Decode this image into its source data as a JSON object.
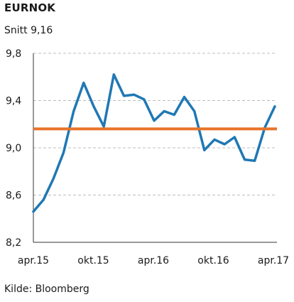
{
  "header": {
    "title": "EURNOK",
    "subtitle": "Snitt 9,16"
  },
  "footer": {
    "source": "Kilde: Bloomberg"
  },
  "colors": {
    "series": "#1f78b4",
    "average": "#e8732a",
    "grid": "#bdbdbd",
    "axis": "#333333"
  },
  "chart_data": {
    "type": "line",
    "title": "EURNOK",
    "subtitle": "Snitt 9,16",
    "xlabel": "",
    "ylabel": "",
    "ylim": [
      8.2,
      9.8
    ],
    "yticks": [
      8.2,
      8.6,
      9.0,
      9.4,
      9.8
    ],
    "ytick_labels": [
      "8,2",
      "8,6",
      "9,0",
      "9,4",
      "9,8"
    ],
    "xtick_labels": [
      "apr.15",
      "okt.15",
      "apr.16",
      "okt.16",
      "apr.17"
    ],
    "grid": true,
    "average": {
      "label": "Snitt 9,16",
      "value": 9.16
    },
    "series": [
      {
        "values": [
          8.46,
          8.56,
          8.74,
          8.96,
          9.31,
          9.55,
          9.35,
          9.18,
          9.62,
          9.44,
          9.45,
          9.41,
          9.23,
          9.31,
          9.28,
          9.43,
          9.31,
          8.98,
          9.07,
          9.03,
          9.09,
          8.9,
          8.89,
          9.17,
          9.35
        ]
      }
    ]
  }
}
